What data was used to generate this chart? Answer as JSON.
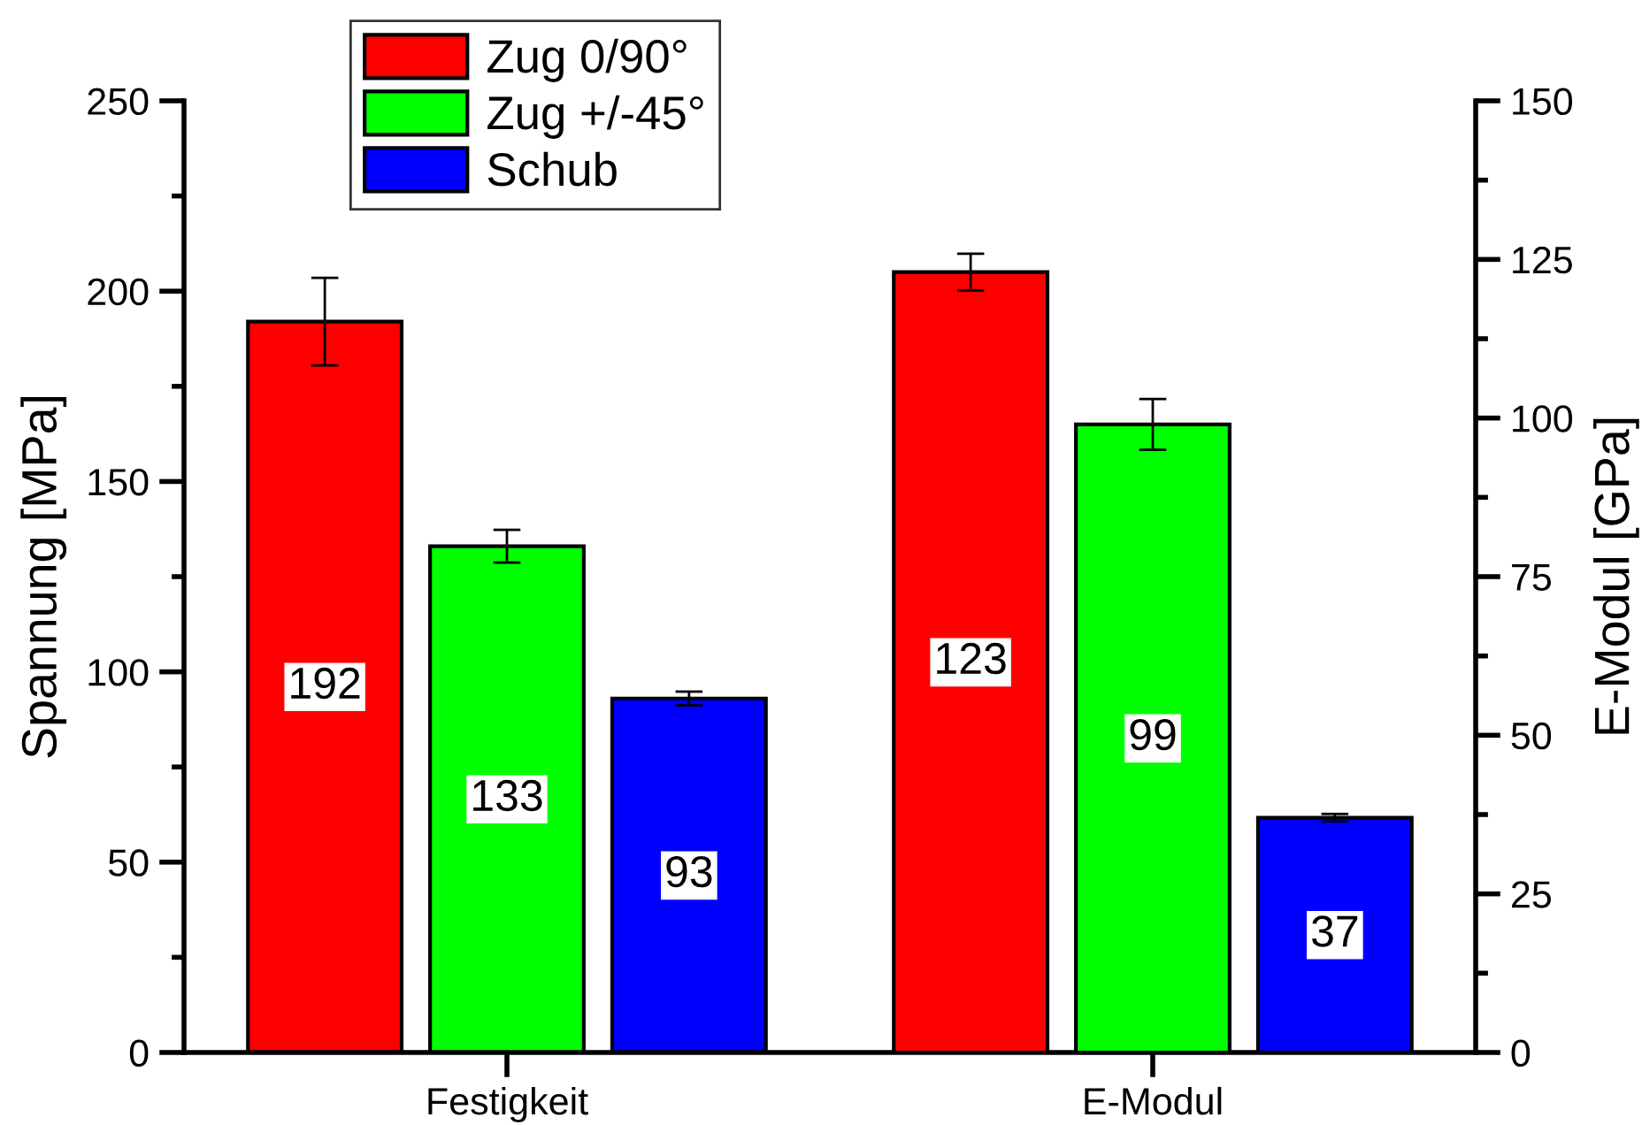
{
  "chart_data": {
    "type": "bar",
    "categories": [
      "Festigkeit",
      "E-Modul"
    ],
    "ylabel": "Spannung [MPa]",
    "y2label": "E-Modul [GPa]",
    "ylim": [
      0,
      250
    ],
    "yticks": [
      0,
      {
        "value": 25,
        "label": null
      },
      50,
      {
        "value": 75,
        "label": null
      },
      100,
      {
        "value": 125,
        "label": null
      },
      150,
      {
        "value": 175,
        "label": null
      },
      200,
      {
        "value": 225,
        "label": null
      },
      250
    ],
    "y2lim": [
      0,
      150
    ],
    "y2ticks": [
      0,
      {
        "value": 12.5,
        "label": null
      },
      25,
      {
        "value": 37.5,
        "label": null
      },
      50,
      {
        "value": 62.5,
        "label": null
      },
      75,
      {
        "value": 87.5,
        "label": null
      },
      100,
      {
        "value": 112.5,
        "label": null
      },
      125,
      {
        "value": 137.5,
        "label": null
      },
      150
    ],
    "series": [
      {
        "name": "Zug 0/90°",
        "color": "#ff0000",
        "values": [
          192,
          null
        ],
        "errors": [
          11.5,
          null
        ]
      },
      {
        "name": "Zug +/-45°",
        "color": "#00ff00",
        "values": [
          133,
          null
        ],
        "errors": [
          4.3,
          null
        ]
      },
      {
        "name": "Schub",
        "color": "#0000ff",
        "values": [
          93,
          null
        ],
        "errors": [
          1.8,
          null
        ]
      },
      {
        "color": "#ff0000",
        "values": [
          null,
          123
        ],
        "errors": [
          null,
          2.9
        ],
        "axis": "y2"
      },
      {
        "color": "#00ff00",
        "values": [
          null,
          99
        ],
        "errors": [
          null,
          4
        ],
        "axis": "y2"
      },
      {
        "color": "#0000ff",
        "values": [
          null,
          37
        ],
        "errors": [
          null,
          0.6
        ],
        "axis": "y2"
      }
    ],
    "data_labels": true,
    "legend": "top left"
  }
}
